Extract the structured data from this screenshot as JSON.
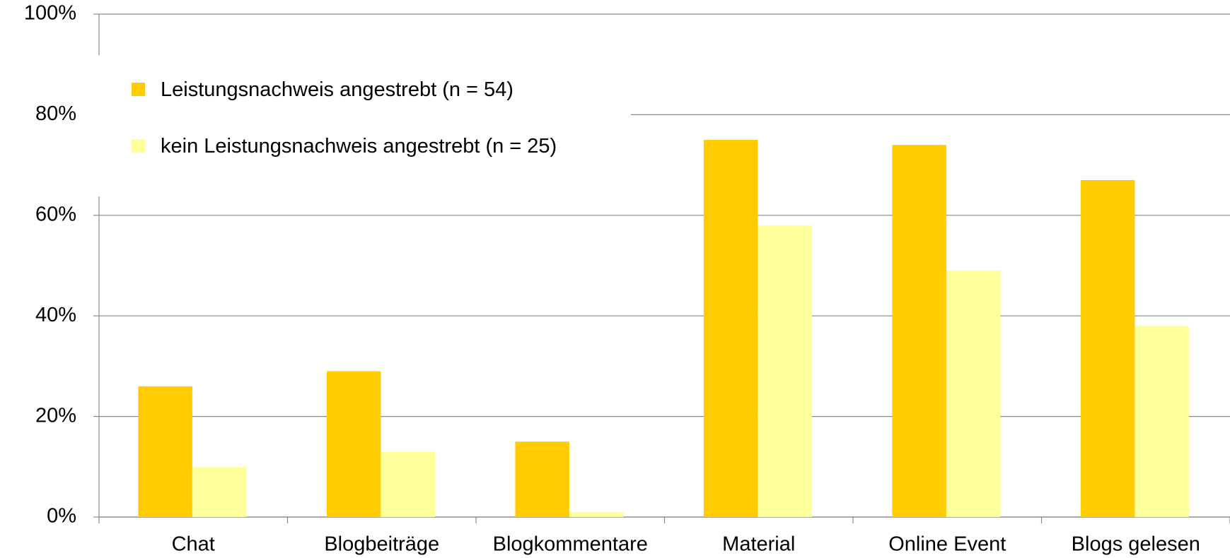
{
  "chart_data": {
    "type": "bar",
    "categories": [
      "Chat",
      "Blogbeiträge",
      "Blogkommentare",
      "Material",
      "Online Event",
      "Blogs gelesen"
    ],
    "series": [
      {
        "name": "Leistungsnachweis angestrebt (n = 54)",
        "color": "#ffcc00",
        "values": [
          26,
          29,
          15,
          75,
          74,
          67
        ]
      },
      {
        "name": "kein Leistungsnachweis angestrebt (n = 25)",
        "color": "#ffff99",
        "values": [
          10,
          13,
          1,
          58,
          49,
          38
        ]
      }
    ],
    "ylim": [
      0,
      100
    ],
    "yticks": [
      {
        "value": 0,
        "label": "0%"
      },
      {
        "value": 20,
        "label": "20%"
      },
      {
        "value": 40,
        "label": "40%"
      },
      {
        "value": 60,
        "label": "60%"
      },
      {
        "value": 80,
        "label": "80%"
      },
      {
        "value": 100,
        "label": "100%"
      }
    ],
    "grid": true,
    "legend": "top-left"
  }
}
